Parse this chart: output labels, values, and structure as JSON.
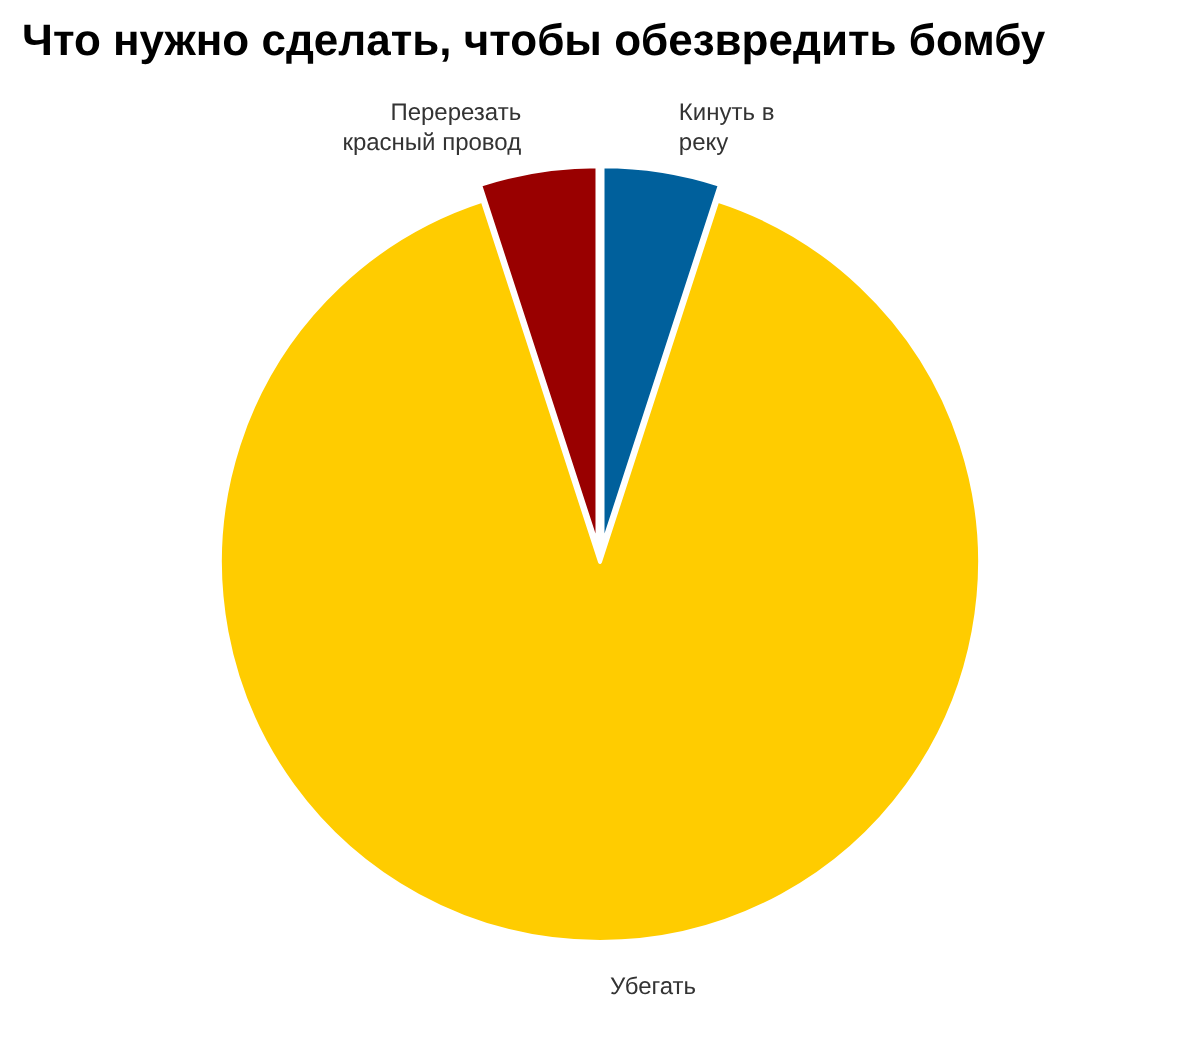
{
  "chart_data": {
    "type": "pie",
    "title": "Что нужно сделать, чтобы обезвредить бомбу",
    "categories": [
      "Кинуть в реку",
      "Убегать",
      "Перерезать красный провод"
    ],
    "values": [
      5,
      90,
      5
    ],
    "colors": [
      "#00609c",
      "#ffcc00",
      "#990000"
    ]
  }
}
